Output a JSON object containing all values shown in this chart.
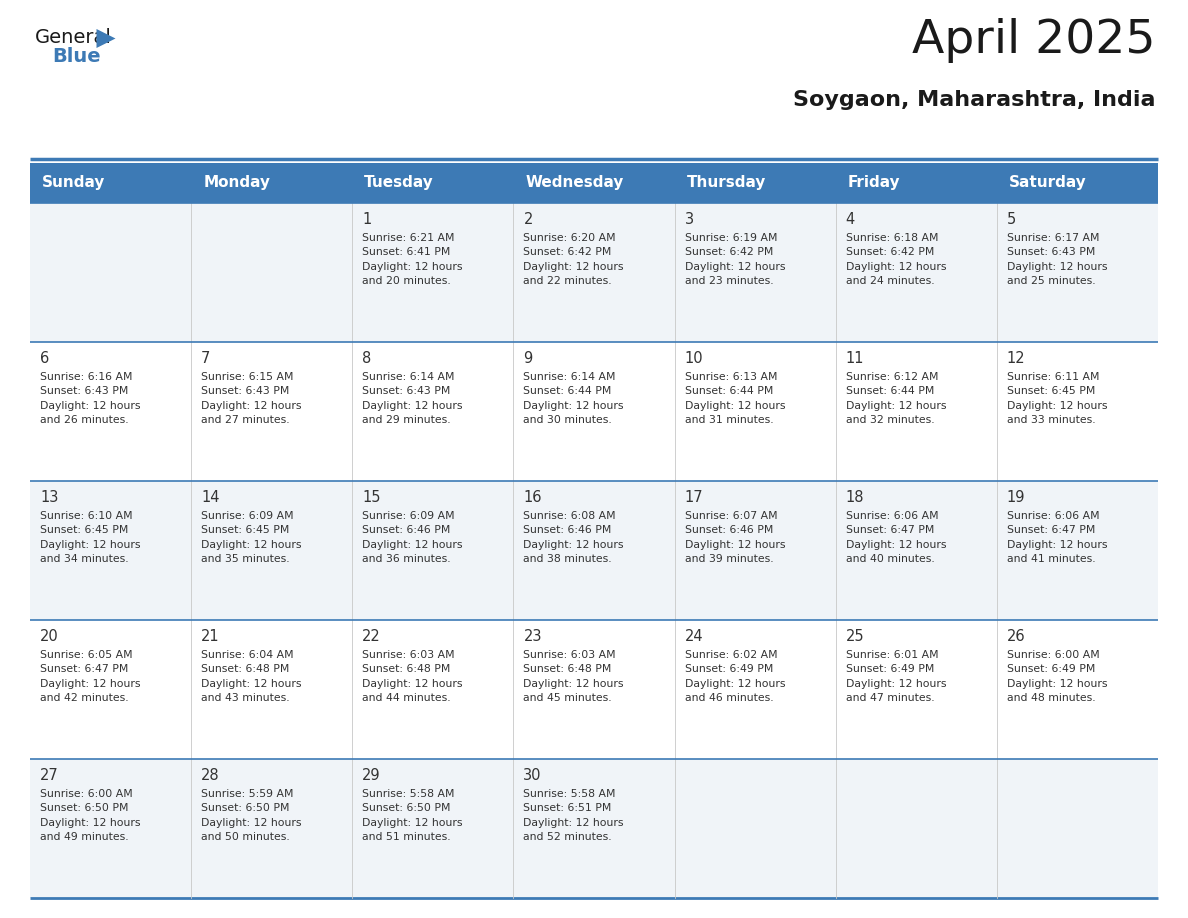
{
  "title": "April 2025",
  "subtitle": "Soygaon, Maharashtra, India",
  "header_bg": "#3d7ab5",
  "header_text_color": "#ffffff",
  "row_bg_even": "#ffffff",
  "row_bg_odd": "#f0f4f8",
  "border_color": "#3d7ab5",
  "text_color": "#333333",
  "days_of_week": [
    "Sunday",
    "Monday",
    "Tuesday",
    "Wednesday",
    "Thursday",
    "Friday",
    "Saturday"
  ],
  "weeks": [
    [
      {
        "day": "",
        "info": ""
      },
      {
        "day": "",
        "info": ""
      },
      {
        "day": "1",
        "info": "Sunrise: 6:21 AM\nSunset: 6:41 PM\nDaylight: 12 hours\nand 20 minutes."
      },
      {
        "day": "2",
        "info": "Sunrise: 6:20 AM\nSunset: 6:42 PM\nDaylight: 12 hours\nand 22 minutes."
      },
      {
        "day": "3",
        "info": "Sunrise: 6:19 AM\nSunset: 6:42 PM\nDaylight: 12 hours\nand 23 minutes."
      },
      {
        "day": "4",
        "info": "Sunrise: 6:18 AM\nSunset: 6:42 PM\nDaylight: 12 hours\nand 24 minutes."
      },
      {
        "day": "5",
        "info": "Sunrise: 6:17 AM\nSunset: 6:43 PM\nDaylight: 12 hours\nand 25 minutes."
      }
    ],
    [
      {
        "day": "6",
        "info": "Sunrise: 6:16 AM\nSunset: 6:43 PM\nDaylight: 12 hours\nand 26 minutes."
      },
      {
        "day": "7",
        "info": "Sunrise: 6:15 AM\nSunset: 6:43 PM\nDaylight: 12 hours\nand 27 minutes."
      },
      {
        "day": "8",
        "info": "Sunrise: 6:14 AM\nSunset: 6:43 PM\nDaylight: 12 hours\nand 29 minutes."
      },
      {
        "day": "9",
        "info": "Sunrise: 6:14 AM\nSunset: 6:44 PM\nDaylight: 12 hours\nand 30 minutes."
      },
      {
        "day": "10",
        "info": "Sunrise: 6:13 AM\nSunset: 6:44 PM\nDaylight: 12 hours\nand 31 minutes."
      },
      {
        "day": "11",
        "info": "Sunrise: 6:12 AM\nSunset: 6:44 PM\nDaylight: 12 hours\nand 32 minutes."
      },
      {
        "day": "12",
        "info": "Sunrise: 6:11 AM\nSunset: 6:45 PM\nDaylight: 12 hours\nand 33 minutes."
      }
    ],
    [
      {
        "day": "13",
        "info": "Sunrise: 6:10 AM\nSunset: 6:45 PM\nDaylight: 12 hours\nand 34 minutes."
      },
      {
        "day": "14",
        "info": "Sunrise: 6:09 AM\nSunset: 6:45 PM\nDaylight: 12 hours\nand 35 minutes."
      },
      {
        "day": "15",
        "info": "Sunrise: 6:09 AM\nSunset: 6:46 PM\nDaylight: 12 hours\nand 36 minutes."
      },
      {
        "day": "16",
        "info": "Sunrise: 6:08 AM\nSunset: 6:46 PM\nDaylight: 12 hours\nand 38 minutes."
      },
      {
        "day": "17",
        "info": "Sunrise: 6:07 AM\nSunset: 6:46 PM\nDaylight: 12 hours\nand 39 minutes."
      },
      {
        "day": "18",
        "info": "Sunrise: 6:06 AM\nSunset: 6:47 PM\nDaylight: 12 hours\nand 40 minutes."
      },
      {
        "day": "19",
        "info": "Sunrise: 6:06 AM\nSunset: 6:47 PM\nDaylight: 12 hours\nand 41 minutes."
      }
    ],
    [
      {
        "day": "20",
        "info": "Sunrise: 6:05 AM\nSunset: 6:47 PM\nDaylight: 12 hours\nand 42 minutes."
      },
      {
        "day": "21",
        "info": "Sunrise: 6:04 AM\nSunset: 6:48 PM\nDaylight: 12 hours\nand 43 minutes."
      },
      {
        "day": "22",
        "info": "Sunrise: 6:03 AM\nSunset: 6:48 PM\nDaylight: 12 hours\nand 44 minutes."
      },
      {
        "day": "23",
        "info": "Sunrise: 6:03 AM\nSunset: 6:48 PM\nDaylight: 12 hours\nand 45 minutes."
      },
      {
        "day": "24",
        "info": "Sunrise: 6:02 AM\nSunset: 6:49 PM\nDaylight: 12 hours\nand 46 minutes."
      },
      {
        "day": "25",
        "info": "Sunrise: 6:01 AM\nSunset: 6:49 PM\nDaylight: 12 hours\nand 47 minutes."
      },
      {
        "day": "26",
        "info": "Sunrise: 6:00 AM\nSunset: 6:49 PM\nDaylight: 12 hours\nand 48 minutes."
      }
    ],
    [
      {
        "day": "27",
        "info": "Sunrise: 6:00 AM\nSunset: 6:50 PM\nDaylight: 12 hours\nand 49 minutes."
      },
      {
        "day": "28",
        "info": "Sunrise: 5:59 AM\nSunset: 6:50 PM\nDaylight: 12 hours\nand 50 minutes."
      },
      {
        "day": "29",
        "info": "Sunrise: 5:58 AM\nSunset: 6:50 PM\nDaylight: 12 hours\nand 51 minutes."
      },
      {
        "day": "30",
        "info": "Sunrise: 5:58 AM\nSunset: 6:51 PM\nDaylight: 12 hours\nand 52 minutes."
      },
      {
        "day": "",
        "info": ""
      },
      {
        "day": "",
        "info": ""
      },
      {
        "day": "",
        "info": ""
      }
    ]
  ],
  "logo_color_general": "#1a1a1a",
  "logo_color_blue": "#3d7ab5"
}
